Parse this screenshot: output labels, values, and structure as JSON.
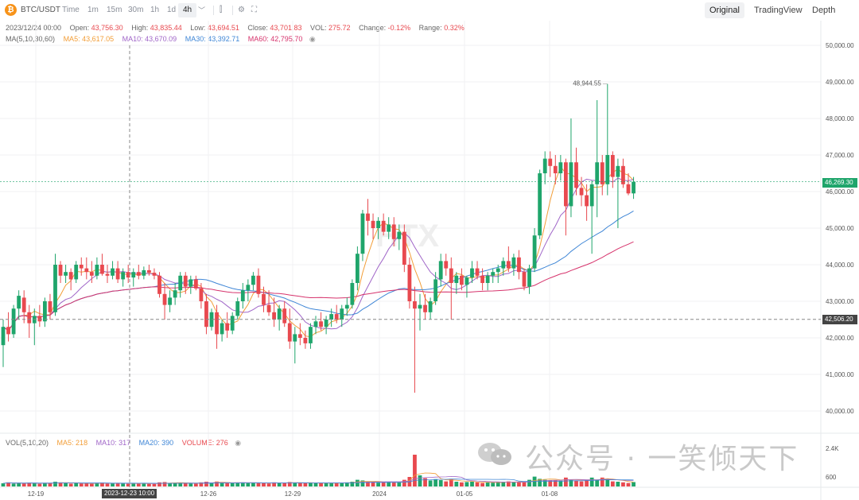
{
  "toolbar": {
    "symbol": "BTC/USDT",
    "intervals": [
      {
        "label": "Time"
      },
      {
        "label": "1m"
      },
      {
        "label": "15m"
      },
      {
        "label": "30m"
      },
      {
        "label": "1h"
      },
      {
        "label": "1d"
      },
      {
        "label": "4h"
      }
    ],
    "active_interval": "4h",
    "views": [
      {
        "label": "Original"
      },
      {
        "label": "TradingView"
      },
      {
        "label": "Depth"
      }
    ],
    "active_view": "Original"
  },
  "ohlc": {
    "date": "2023/12/24 00:00",
    "open_label": "Open:",
    "open": "43,756.30",
    "high_label": "High:",
    "high": "43,835.44",
    "low_label": "Low:",
    "low": "43,694.51",
    "close_label": "Close:",
    "close": "43,701.83",
    "vol_label": "VOL:",
    "vol": "275.72",
    "change_label": "Change:",
    "change": "-0.12%",
    "range_label": "Range:",
    "range": "0.32%"
  },
  "ma": {
    "title": "MA(5,10,30,60)",
    "ma5": "MA5: 43,617.05",
    "ma10": "MA10: 43,670.09",
    "ma30": "MA30: 43,392.71",
    "ma60": "MA60: 42,795.70"
  },
  "volume": {
    "title": "VOL(5,10,20)",
    "ma5": "MA5: 218",
    "ma10": "MA10: 317",
    "ma20": "MA20: 390",
    "volume": "VOLUME: 276"
  },
  "price_axis": [
    "50,000.00",
    "49,000.00",
    "48,000.00",
    "47,000.00",
    "46,000.00",
    "45,000.00",
    "44,000.00",
    "43,000.00",
    "42,000.00",
    "41,000.00",
    "40,000.00"
  ],
  "volume_axis": [
    "2.4K",
    "600"
  ],
  "time_axis": [
    "12-19",
    "12-26",
    "12-29",
    "2024",
    "01-05",
    "01-08"
  ],
  "crosshair": {
    "time": "2023-12-23 10:00",
    "price": "42,506.20"
  },
  "last_price": "46,269.30",
  "peak_label": "48,944.55",
  "watermark": "公众号 · 一笑倾天下",
  "logo_text": "HTX",
  "colors": {
    "up": "#1fa56b",
    "down": "#e8494f",
    "ma5": "#f29e38",
    "ma10": "#a066c8",
    "ma30": "#3f86d6",
    "ma60": "#d6336c"
  },
  "chart_data": {
    "type": "candlestick",
    "candles": [
      [
        41800,
        42500,
        41200,
        42300
      ],
      [
        42300,
        42700,
        41900,
        42100
      ],
      [
        42100,
        42900,
        42000,
        42800
      ],
      [
        42800,
        43300,
        42500,
        43150
      ],
      [
        43100,
        43300,
        42400,
        42700
      ],
      [
        42700,
        42900,
        42000,
        42400
      ],
      [
        42400,
        42800,
        41800,
        42600
      ],
      [
        42600,
        42900,
        42300,
        42450
      ],
      [
        42450,
        43100,
        42300,
        43000
      ],
      [
        43000,
        43200,
        42500,
        42700
      ],
      [
        42700,
        44300,
        42600,
        44000
      ],
      [
        44000,
        44100,
        43500,
        43700
      ],
      [
        43700,
        44000,
        43500,
        43800
      ],
      [
        43800,
        43900,
        43300,
        43600
      ],
      [
        43600,
        44100,
        43500,
        44000
      ],
      [
        44000,
        44200,
        43700,
        43900
      ],
      [
        43900,
        44200,
        43600,
        43800
      ],
      [
        43800,
        44100,
        43500,
        43700
      ],
      [
        43700,
        44200,
        43600,
        44000
      ],
      [
        44000,
        44300,
        43700,
        43750
      ],
      [
        43750,
        44000,
        43500,
        43700
      ],
      [
        43700,
        44100,
        43600,
        43900
      ],
      [
        43900,
        44100,
        43500,
        43600
      ],
      [
        43600,
        43900,
        43400,
        43800
      ],
      [
        43800,
        44000,
        43500,
        43650
      ],
      [
        43650,
        43900,
        43400,
        43800
      ],
      [
        43800,
        44000,
        43600,
        43700
      ],
      [
        43700,
        43950,
        43600,
        43850
      ],
      [
        43850,
        44000,
        43700,
        43780
      ],
      [
        43780,
        43900,
        43600,
        43700
      ],
      [
        43700,
        43800,
        43100,
        43200
      ],
      [
        43200,
        43500,
        42500,
        42900
      ],
      [
        42900,
        43300,
        42700,
        43100
      ],
      [
        43100,
        43500,
        42900,
        43300
      ],
      [
        43300,
        43800,
        43100,
        43700
      ],
      [
        43700,
        43800,
        43200,
        43400
      ],
      [
        43400,
        43700,
        43200,
        43600
      ],
      [
        43600,
        43700,
        43300,
        43350
      ],
      [
        43350,
        43500,
        42800,
        43000
      ],
      [
        43000,
        43200,
        42100,
        42300
      ],
      [
        42300,
        42800,
        42200,
        42700
      ],
      [
        42700,
        42900,
        41700,
        42100
      ],
      [
        42100,
        42500,
        41900,
        42400
      ],
      [
        42400,
        42700,
        42000,
        42200
      ],
      [
        42200,
        42700,
        42100,
        42600
      ],
      [
        42600,
        43100,
        42500,
        43000
      ],
      [
        43000,
        43500,
        42800,
        43300
      ],
      [
        43300,
        43600,
        43000,
        43450
      ],
      [
        43450,
        43800,
        43300,
        43700
      ],
      [
        43700,
        43900,
        43100,
        43200
      ],
      [
        43200,
        43400,
        42700,
        42900
      ],
      [
        42900,
        43300,
        42600,
        42700
      ],
      [
        42700,
        43100,
        42300,
        42500
      ],
      [
        42500,
        42900,
        42200,
        42800
      ],
      [
        42800,
        43000,
        42300,
        42400
      ],
      [
        42400,
        42800,
        41700,
        41900
      ],
      [
        41900,
        42300,
        41300,
        42100
      ],
      [
        42100,
        42400,
        41800,
        42000
      ],
      [
        42000,
        42200,
        41700,
        41850
      ],
      [
        41850,
        42400,
        41700,
        42300
      ],
      [
        42300,
        42600,
        42100,
        42450
      ],
      [
        42450,
        42700,
        42200,
        42300
      ],
      [
        42300,
        42600,
        42100,
        42500
      ],
      [
        42500,
        42800,
        42300,
        42650
      ],
      [
        42650,
        42900,
        42400,
        42500
      ],
      [
        42500,
        42900,
        42300,
        42800
      ],
      [
        42800,
        43100,
        42600,
        42900
      ],
      [
        42900,
        43600,
        42800,
        43500
      ],
      [
        43500,
        44500,
        43300,
        44300
      ],
      [
        44300,
        45500,
        44100,
        45400
      ],
      [
        45400,
        45800,
        44800,
        45200
      ],
      [
        45200,
        45400,
        44700,
        45000
      ],
      [
        45000,
        45300,
        44700,
        45200
      ],
      [
        45200,
        45400,
        44800,
        44900
      ],
      [
        44900,
        45300,
        44700,
        45100
      ],
      [
        45100,
        45300,
        44500,
        44700
      ],
      [
        44700,
        45100,
        44400,
        44900
      ],
      [
        44900,
        45100,
        43800,
        44000
      ],
      [
        44000,
        44200,
        42800,
        43000
      ],
      [
        43000,
        43400,
        40500,
        42800
      ],
      [
        42800,
        43200,
        42200,
        42900
      ],
      [
        42900,
        43200,
        42500,
        42700
      ],
      [
        42700,
        43100,
        42500,
        43000
      ],
      [
        43000,
        43800,
        42900,
        43600
      ],
      [
        43600,
        44300,
        43400,
        44100
      ],
      [
        44100,
        44300,
        43700,
        43900
      ],
      [
        43900,
        44200,
        42500,
        43500
      ],
      [
        43500,
        43800,
        43200,
        43700
      ],
      [
        43700,
        43900,
        43300,
        43450
      ],
      [
        43450,
        43700,
        43100,
        43650
      ],
      [
        43650,
        44100,
        43500,
        43900
      ],
      [
        43900,
        44100,
        43600,
        43700
      ],
      [
        43700,
        43900,
        43300,
        43500
      ],
      [
        43500,
        43800,
        43300,
        43700
      ],
      [
        43700,
        43900,
        43500,
        43800
      ],
      [
        43800,
        44000,
        43500,
        43900
      ],
      [
        43900,
        44200,
        43700,
        44100
      ],
      [
        44100,
        44500,
        43800,
        43900
      ],
      [
        43900,
        44300,
        43700,
        44200
      ],
      [
        44200,
        44400,
        43600,
        43800
      ],
      [
        43800,
        43900,
        43300,
        43400
      ],
      [
        43400,
        44000,
        43200,
        43900
      ],
      [
        43900,
        45000,
        43800,
        44800
      ],
      [
        44800,
        46600,
        44700,
        46500
      ],
      [
        46500,
        47100,
        46200,
        46900
      ],
      [
        46900,
        47100,
        46400,
        46700
      ],
      [
        46700,
        47000,
        46200,
        46500
      ],
      [
        46500,
        47000,
        46300,
        46800
      ],
      [
        46800,
        46900,
        44800,
        45600
      ],
      [
        45600,
        48000,
        45300,
        46800
      ],
      [
        46800,
        47200,
        45900,
        46100
      ],
      [
        46100,
        46400,
        45600,
        45900
      ],
      [
        45900,
        46200,
        45200,
        45600
      ],
      [
        45600,
        46300,
        44300,
        46200
      ],
      [
        46200,
        48500,
        45300,
        46800
      ],
      [
        46800,
        47000,
        45900,
        46200
      ],
      [
        46200,
        48944,
        45900,
        47000
      ],
      [
        47000,
        47100,
        46100,
        46400
      ],
      [
        46400,
        46900,
        45000,
        46700
      ],
      [
        46700,
        46900,
        46100,
        46200
      ],
      [
        46200,
        46500,
        45900,
        45950
      ],
      [
        45950,
        46400,
        45800,
        46269
      ]
    ],
    "volumes": [
      200,
      260,
      180,
      220,
      190,
      240,
      210,
      170,
      230,
      200,
      300,
      260,
      220,
      180,
      210,
      190,
      200,
      170,
      230,
      250,
      180,
      200,
      190,
      210,
      170,
      200,
      180,
      190,
      170,
      160,
      260,
      280,
      210,
      230,
      240,
      200,
      190,
      180,
      260,
      300,
      220,
      310,
      240,
      200,
      210,
      230,
      260,
      220,
      240,
      210,
      200,
      190,
      260,
      230,
      210,
      280,
      250,
      220,
      200,
      240,
      210,
      200,
      220,
      230,
      200,
      240,
      260,
      300,
      420,
      380,
      300,
      260,
      240,
      280,
      300,
      260,
      250,
      420,
      600,
      2000,
      700,
      520,
      380,
      460,
      400,
      320,
      480,
      300,
      260,
      280,
      300,
      260,
      220,
      260,
      240,
      280,
      300,
      320,
      260,
      280,
      300,
      420,
      620,
      480,
      420,
      380,
      400,
      360,
      560,
      420,
      380,
      320,
      420,
      560,
      420,
      560,
      480,
      320,
      300,
      260,
      220,
      276
    ]
  }
}
